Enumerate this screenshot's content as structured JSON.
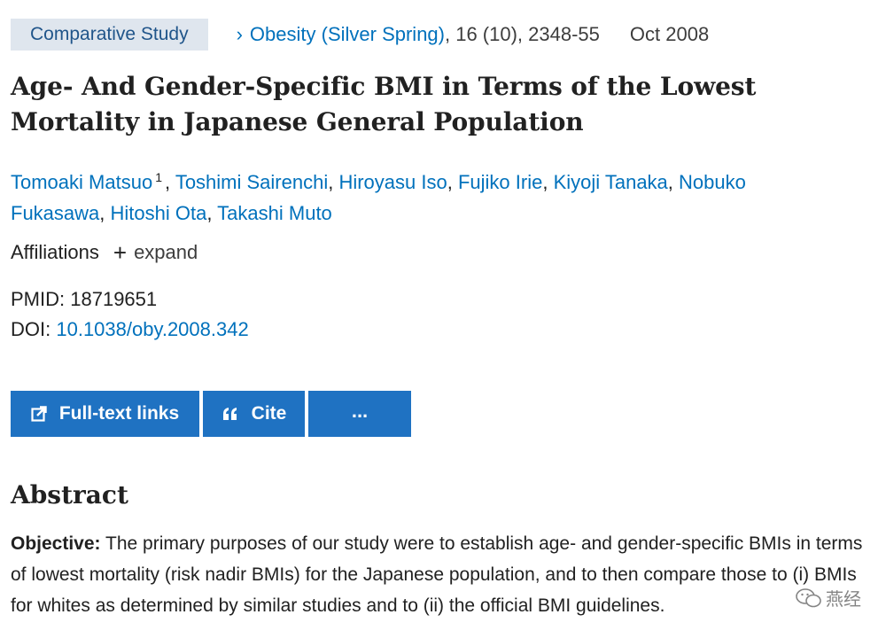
{
  "meta": {
    "article_type": "Comparative Study",
    "journal": "Obesity (Silver Spring)",
    "citation": ", 16 (10), 2348-55",
    "date": "Oct 2008"
  },
  "title": "Age- And Gender-Specific BMI in Terms of the Lowest Mortality in Japanese General Population",
  "authors": [
    {
      "name": "Tomoaki Matsuo",
      "sup": "1"
    },
    {
      "name": "Toshimi Sairenchi"
    },
    {
      "name": "Hiroyasu Iso"
    },
    {
      "name": "Fujiko Irie"
    },
    {
      "name": "Kiyoji Tanaka"
    },
    {
      "name": "Nobuko Fukasawa"
    },
    {
      "name": "Hitoshi Ota"
    },
    {
      "name": "Takashi Muto"
    }
  ],
  "affiliations": {
    "label": "Affiliations",
    "plus": "+",
    "expand": "expand"
  },
  "ids": {
    "pmid_label": "PMID:",
    "pmid": "18719651",
    "doi_label": "DOI:",
    "doi": "10.1038/oby.2008.342"
  },
  "buttons": {
    "fulltext": "Full-text links",
    "cite": "Cite",
    "more": "..."
  },
  "abstract": {
    "heading": "Abstract",
    "objective_label": "Objective:",
    "objective_text": "The primary purposes of our study were to establish age- and gender-specific BMIs in terms of lowest mortality (risk nadir BMIs) for the Japanese population, and to then compare those to (i) BMIs for whites as determined by similar studies and to (ii) the official BMI guidelines."
  },
  "watermark": {
    "text": "燕经"
  },
  "colors": {
    "link": "#0071bc",
    "button": "#1f72c2",
    "badge_bg": "#dfe6ee"
  }
}
